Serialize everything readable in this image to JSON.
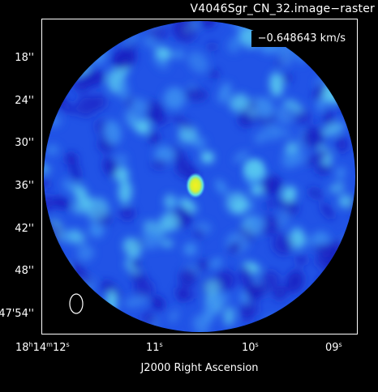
{
  "title": "V4046Sgr_CN_32.image−raster",
  "velocity_label": "−0.648643 km/s",
  "axes": {
    "x_label": "J2000 Right Ascension",
    "x_ticks": [
      {
        "h": "18",
        "m": "14",
        "s": "12",
        "prefix": "18h14m12s"
      },
      {
        "label": "11",
        "unit": "s"
      },
      {
        "label": "10",
        "unit": "s"
      },
      {
        "label": "09",
        "unit": "s"
      }
    ],
    "y_ticks": [
      "18''",
      "24''",
      "30''",
      "36''",
      "42''",
      "48''",
      "−47'54''"
    ]
  },
  "colors": {
    "background": "#000000",
    "map_base": "#1f4de8",
    "map_low": "#1a1fc0",
    "map_mid": "#3a8cf0",
    "map_high": "#5ed6f0",
    "peak": "#e8f020",
    "beam": "#ffffff"
  }
}
